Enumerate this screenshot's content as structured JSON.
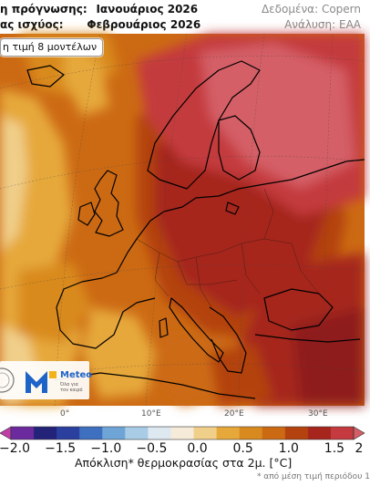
{
  "header": {
    "forecast_label": "η πρόγνωσης:",
    "forecast_value": "Ιανουάριος 2026",
    "valid_label": "ας ισχύος:",
    "valid_value": "Φεβρουάριος 2026",
    "data_source": "Δεδομένα: Copern",
    "analysis": "Ανάλυση: ΕΑΑ"
  },
  "map": {
    "model_note": "η τιμή 8 μοντέλων",
    "lon_labels": [
      "0°",
      "10°E",
      "20°E",
      "30°E"
    ]
  },
  "logo": {
    "name": "Meteo",
    "slogan_line1": "Όλα για",
    "slogan_line2": "τον καιρό",
    "brand_color": "#1e63c8"
  },
  "colorbar": {
    "ticks": [
      "−2.0",
      "−1.5",
      "−1.0",
      "−0.5",
      "0.0",
      "0.5",
      "1.0",
      "1.5",
      "2"
    ],
    "colors": [
      "#bf3fa6",
      "#6b2a9e",
      "#23237a",
      "#2b3f9e",
      "#3f6fbf",
      "#6fa5d6",
      "#a8cce6",
      "#dde8f0",
      "#f6ead8",
      "#f0cf8a",
      "#e6a83a",
      "#d98a1e",
      "#cc6a14",
      "#b4420f",
      "#a6261e",
      "#c43a3e",
      "#d45f66"
    ],
    "title": "Απόκλιση* θερμοκρασίας στα 2μ. [°C]",
    "footnote": "* από μέση τιμή περιόδου 1"
  }
}
